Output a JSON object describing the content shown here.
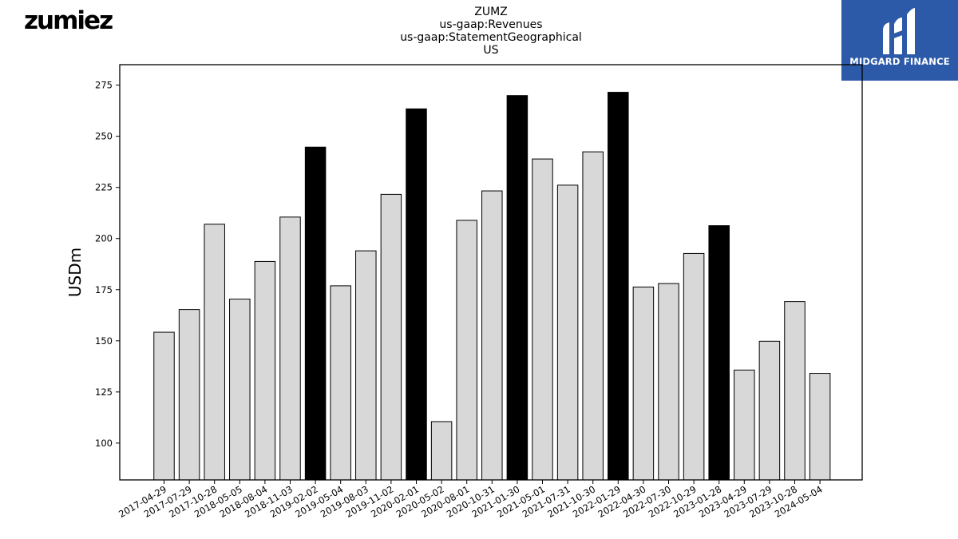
{
  "header": {
    "company_logo_text": "zumiez",
    "brand_name": "MIDGARD FINANCE"
  },
  "colors": {
    "bar_default": "#d8d8d8",
    "bar_highlight": "#000000",
    "bar_outline": "#000000",
    "brand_bg": "#2c5aa8"
  },
  "chart_data": {
    "type": "bar",
    "title_lines": [
      "ZUMZ",
      "us-gaap:Revenues",
      "us-gaap:StatementGeographical",
      "US"
    ],
    "xlabel": "",
    "ylabel": "USDm",
    "ylim": [
      82,
      285
    ],
    "yticks": [
      100,
      125,
      150,
      175,
      200,
      225,
      250,
      275
    ],
    "categories": [
      "2017-04-29",
      "2017-07-29",
      "2017-10-28",
      "2018-05-05",
      "2018-08-04",
      "2018-11-03",
      "2019-02-02",
      "2019-05-04",
      "2019-08-03",
      "2019-11-02",
      "2020-02-01",
      "2020-05-02",
      "2020-08-01",
      "2020-10-31",
      "2021-01-30",
      "2021-05-01",
      "2021-07-31",
      "2021-10-30",
      "2022-01-29",
      "2022-04-30",
      "2022-07-30",
      "2022-10-29",
      "2023-01-28",
      "2023-04-29",
      "2023-07-29",
      "2023-10-28",
      "2024-05-04"
    ],
    "values": [
      154.2,
      165.3,
      207.0,
      170.4,
      188.8,
      210.5,
      244.7,
      176.9,
      194.0,
      221.6,
      263.4,
      110.5,
      208.9,
      223.3,
      269.9,
      238.9,
      226.1,
      242.4,
      271.5,
      176.3,
      178.0,
      192.7,
      206.3,
      135.7,
      149.8,
      169.2,
      134.1
    ],
    "highlighted": [
      false,
      false,
      false,
      false,
      false,
      false,
      true,
      false,
      false,
      false,
      true,
      false,
      false,
      false,
      true,
      false,
      false,
      false,
      true,
      false,
      false,
      false,
      true,
      false,
      false,
      false,
      false
    ],
    "grid": false,
    "legend": "none"
  }
}
